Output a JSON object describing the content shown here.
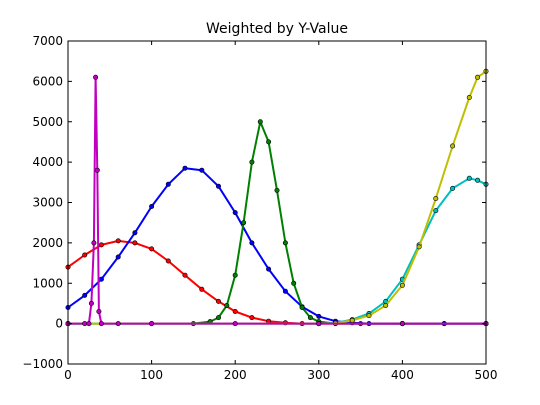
{
  "chart_data": {
    "type": "line",
    "title": "Weighted by Y-Value",
    "xlim": [
      0,
      500
    ],
    "ylim": [
      -1000,
      7000
    ],
    "xticks": [
      0,
      100,
      200,
      300,
      400,
      500
    ],
    "yticks": [
      -1000,
      0,
      1000,
      2000,
      3000,
      4000,
      5000,
      6000,
      7000
    ],
    "grid": false,
    "series": [
      {
        "color": "#ff0000",
        "points": [
          [
            0,
            1400
          ],
          [
            20,
            1700
          ],
          [
            40,
            1950
          ],
          [
            60,
            2050
          ],
          [
            80,
            2000
          ],
          [
            100,
            1850
          ],
          [
            120,
            1550
          ],
          [
            140,
            1200
          ],
          [
            160,
            850
          ],
          [
            180,
            550
          ],
          [
            200,
            300
          ],
          [
            220,
            150
          ],
          [
            240,
            60
          ],
          [
            260,
            20
          ],
          [
            280,
            0
          ],
          [
            300,
            0
          ],
          [
            350,
            0
          ],
          [
            400,
            0
          ],
          [
            450,
            0
          ],
          [
            500,
            0
          ]
        ]
      },
      {
        "color": "#0000ff",
        "points": [
          [
            0,
            400
          ],
          [
            20,
            700
          ],
          [
            40,
            1100
          ],
          [
            60,
            1650
          ],
          [
            80,
            2250
          ],
          [
            100,
            2900
          ],
          [
            120,
            3450
          ],
          [
            140,
            3850
          ],
          [
            160,
            3800
          ],
          [
            180,
            3400
          ],
          [
            200,
            2750
          ],
          [
            220,
            2000
          ],
          [
            240,
            1350
          ],
          [
            260,
            800
          ],
          [
            280,
            420
          ],
          [
            300,
            180
          ],
          [
            320,
            60
          ],
          [
            340,
            20
          ],
          [
            360,
            0
          ],
          [
            400,
            0
          ],
          [
            450,
            0
          ],
          [
            500,
            0
          ]
        ]
      },
      {
        "color": "#008000",
        "points": [
          [
            0,
            0
          ],
          [
            100,
            0
          ],
          [
            150,
            0
          ],
          [
            170,
            50
          ],
          [
            180,
            150
          ],
          [
            190,
            450
          ],
          [
            200,
            1200
          ],
          [
            210,
            2500
          ],
          [
            220,
            4000
          ],
          [
            230,
            5000
          ],
          [
            240,
            4500
          ],
          [
            250,
            3300
          ],
          [
            260,
            2000
          ],
          [
            270,
            1000
          ],
          [
            280,
            400
          ],
          [
            290,
            150
          ],
          [
            300,
            50
          ],
          [
            320,
            0
          ],
          [
            400,
            0
          ],
          [
            500,
            0
          ]
        ]
      },
      {
        "color": "#00bfbf",
        "points": [
          [
            0,
            0
          ],
          [
            300,
            0
          ],
          [
            320,
            20
          ],
          [
            340,
            100
          ],
          [
            360,
            250
          ],
          [
            380,
            550
          ],
          [
            400,
            1100
          ],
          [
            420,
            1950
          ],
          [
            440,
            2800
          ],
          [
            460,
            3350
          ],
          [
            480,
            3600
          ],
          [
            490,
            3550
          ],
          [
            500,
            3450
          ]
        ]
      },
      {
        "color": "#bfbf00",
        "points": [
          [
            0,
            0
          ],
          [
            300,
            0
          ],
          [
            320,
            10
          ],
          [
            340,
            80
          ],
          [
            360,
            200
          ],
          [
            380,
            450
          ],
          [
            400,
            950
          ],
          [
            420,
            1900
          ],
          [
            440,
            3100
          ],
          [
            460,
            4400
          ],
          [
            480,
            5600
          ],
          [
            490,
            6100
          ],
          [
            500,
            6250
          ]
        ]
      },
      {
        "color": "#bf00bf",
        "points": [
          [
            0,
            0
          ],
          [
            20,
            0
          ],
          [
            25,
            0
          ],
          [
            28,
            500
          ],
          [
            31,
            2000
          ],
          [
            33,
            6100
          ],
          [
            35,
            3800
          ],
          [
            37,
            300
          ],
          [
            40,
            0
          ],
          [
            60,
            0
          ],
          [
            100,
            0
          ],
          [
            200,
            0
          ],
          [
            300,
            0
          ],
          [
            400,
            0
          ],
          [
            500,
            0
          ]
        ]
      }
    ]
  }
}
